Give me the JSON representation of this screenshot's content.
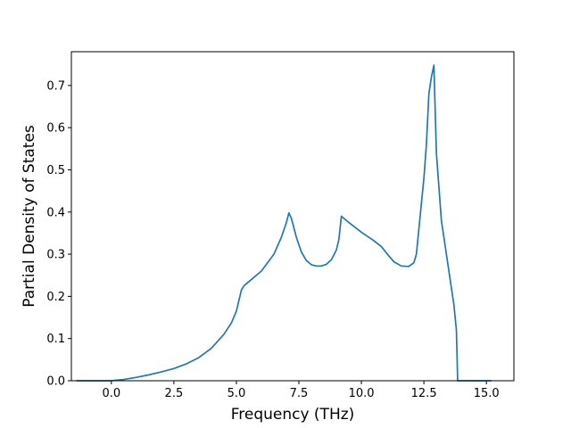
{
  "chart_data": {
    "type": "line",
    "title": "",
    "xlabel": "Frequency (THz)",
    "ylabel": "Partial Density of States",
    "xlim": [
      -1.6,
      16.1
    ],
    "ylim": [
      0.0,
      0.78
    ],
    "xticks": [
      0.0,
      2.5,
      5.0,
      7.5,
      10.0,
      12.5,
      15.0
    ],
    "xtick_labels": [
      "0.0",
      "2.5",
      "5.0",
      "7.5",
      "10.0",
      "12.5",
      "15.0"
    ],
    "yticks": [
      0.0,
      0.1,
      0.2,
      0.3,
      0.4,
      0.5,
      0.6,
      0.7
    ],
    "ytick_labels": [
      "0.0",
      "0.1",
      "0.2",
      "0.3",
      "0.4",
      "0.5",
      "0.6",
      "0.7"
    ],
    "grid": false,
    "legend": "none",
    "series": [
      {
        "color": "#1f77b4",
        "x": [
          -1.4,
          0.0,
          0.5,
          1.0,
          1.5,
          2.0,
          2.5,
          3.0,
          3.5,
          4.0,
          4.5,
          4.8,
          5.0,
          5.1,
          5.2,
          5.3,
          5.5,
          6.0,
          6.5,
          6.8,
          7.0,
          7.1,
          7.2,
          7.4,
          7.6,
          7.8,
          8.0,
          8.2,
          8.4,
          8.6,
          8.8,
          9.0,
          9.1,
          9.2,
          9.5,
          10.0,
          10.5,
          10.8,
          11.0,
          11.3,
          11.6,
          11.9,
          12.1,
          12.2,
          12.4,
          12.5,
          12.6,
          12.65,
          12.7,
          12.8,
          12.9,
          13.0,
          13.2,
          13.4,
          13.6,
          13.7,
          13.8,
          13.85,
          14.0,
          15.2
        ],
        "y": [
          0.0,
          0.0,
          0.003,
          0.008,
          0.014,
          0.021,
          0.029,
          0.04,
          0.055,
          0.077,
          0.11,
          0.137,
          0.165,
          0.19,
          0.215,
          0.225,
          0.235,
          0.26,
          0.3,
          0.34,
          0.375,
          0.398,
          0.385,
          0.34,
          0.305,
          0.285,
          0.275,
          0.272,
          0.272,
          0.276,
          0.287,
          0.31,
          0.335,
          0.39,
          0.375,
          0.352,
          0.332,
          0.318,
          0.303,
          0.282,
          0.272,
          0.271,
          0.28,
          0.3,
          0.42,
          0.48,
          0.56,
          0.62,
          0.68,
          0.72,
          0.748,
          0.54,
          0.38,
          0.3,
          0.22,
          0.18,
          0.12,
          0.0,
          0.0,
          0.0
        ]
      }
    ]
  }
}
